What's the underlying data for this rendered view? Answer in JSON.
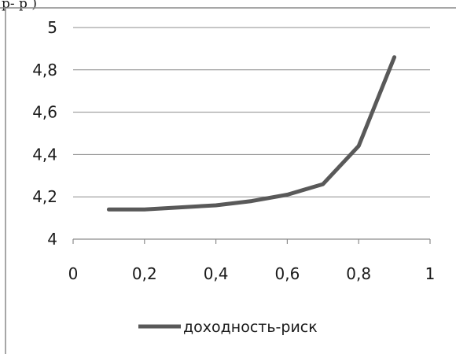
{
  "header_fragment": "p- p  )",
  "chart_data": {
    "type": "line",
    "title": "",
    "xlabel": "",
    "ylabel": "",
    "xlim": [
      0,
      1
    ],
    "ylim": [
      4,
      5
    ],
    "x_ticks": [
      0,
      0.2,
      0.4,
      0.6,
      0.8,
      1
    ],
    "x_tick_labels": [
      "0",
      "0,2",
      "0,4",
      "0,6",
      "0,8",
      "1"
    ],
    "y_ticks": [
      4,
      4.2,
      4.4,
      4.6,
      4.8,
      5
    ],
    "y_tick_labels": [
      "4",
      "4,2",
      "4,4",
      "4,6",
      "4,8",
      "5"
    ],
    "grid": "horizontal",
    "legend_position": "bottom",
    "series": [
      {
        "name": "доходность-риск",
        "color": "#595959",
        "x": [
          0.1,
          0.2,
          0.3,
          0.4,
          0.5,
          0.6,
          0.7,
          0.8,
          0.9
        ],
        "y": [
          4.14,
          4.14,
          4.15,
          4.16,
          4.18,
          4.21,
          4.26,
          4.44,
          4.86
        ]
      }
    ]
  }
}
